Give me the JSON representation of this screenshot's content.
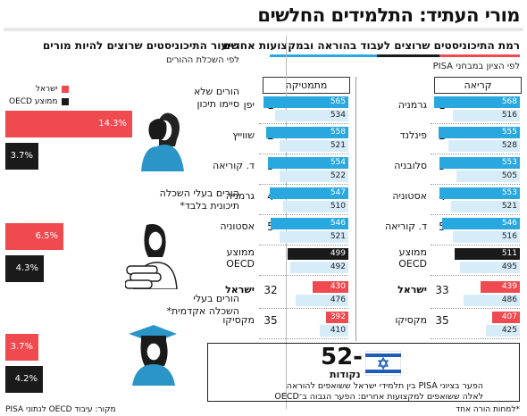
{
  "title": "מורי העתיד: התלמידים החלשים",
  "left_panel": {
    "heading": "רמת התיכוניסטים שרוצים לעבוד בהוראה ובמקצועות אחרים",
    "subheading": "לפי הציון במבחני PISA",
    "col_reading": "קריאה",
    "col_math": "מתמטיקה"
  },
  "right_panel": {
    "heading": "שיעור התיכוניסטים שרוצים להיות מורים",
    "subheading": "לפי השכלת ההורים",
    "legend": [
      {
        "label": "ישראל",
        "color": "#ef4a4f"
      },
      {
        "label": "ממוצע OECD",
        "color": "#1a1a1a"
      }
    ],
    "groups": [
      {
        "label_line1": "הורים שלא",
        "label_line2": "סיימו תיכון",
        "israel": 14.3,
        "oecd": 3.7,
        "israel_label": "14.3%",
        "oecd_label": "3.7%"
      },
      {
        "label_line1": "הורים בעלי השכלה",
        "label_line2": "תיכונית בלבד*",
        "israel": 6.5,
        "oecd": 4.3,
        "israel_label": "6.5%",
        "oecd_label": "4.3%"
      },
      {
        "label_line1": "הורים בעלי",
        "label_line2": "השכלה אקדמית*",
        "israel": 3.7,
        "oecd": 4.2,
        "israel_label": "3.7%",
        "oecd_label": "4.2%"
      }
    ]
  },
  "chart_data": [
    {
      "type": "bar",
      "title": "קריאה",
      "rows": [
        {
          "rank": "1",
          "country": "גרמניה",
          "top": 568,
          "other": 516
        },
        {
          "rank": "2",
          "country": "פינלנד",
          "top": 555,
          "other": 528
        },
        {
          "rank": "3",
          "country": "סלובניה",
          "top": 553,
          "other": 505
        },
        {
          "rank": "4",
          "country": "אסטוניה",
          "top": 553,
          "other": 521
        },
        {
          "rank": "5",
          "country": "ד. קוריאה",
          "top": 546,
          "other": 516
        },
        {
          "rank": "",
          "country": "ממוצע OECD",
          "top": 511,
          "other": 495
        },
        {
          "rank": "33",
          "country": "ישראל",
          "top": 439,
          "other": 486
        },
        {
          "rank": "35",
          "country": "מקסיקו",
          "top": 407,
          "other": 425
        }
      ]
    },
    {
      "type": "bar",
      "title": "מתמטיקה",
      "rows": [
        {
          "rank": "1",
          "country": "יפן",
          "top": 565,
          "other": 534
        },
        {
          "rank": "2",
          "country": "שווייץ",
          "top": 558,
          "other": 521
        },
        {
          "rank": "3",
          "country": "ד. קוריאה",
          "top": 554,
          "other": 522
        },
        {
          "rank": "4",
          "country": "גרמניה",
          "top": 547,
          "other": 510
        },
        {
          "rank": "5",
          "country": "אסטוניה",
          "top": 546,
          "other": 521
        },
        {
          "rank": "",
          "country": "ממוצע OECD",
          "top": 499,
          "other": 492
        },
        {
          "rank": "32",
          "country": "ישראל",
          "top": 430,
          "other": 476
        },
        {
          "rank": "35",
          "country": "מקסיקו",
          "top": 392,
          "other": 410
        }
      ]
    },
    {
      "type": "bar",
      "title": "שיעור התיכוניסטים שרוצים להיות מורים",
      "categories": [
        "הורים שלא סיימו תיכון",
        "הורים בעלי השכלה תיכונית בלבד*",
        "הורים בעלי השכלה אקדמית*"
      ],
      "series": [
        {
          "name": "ישראל",
          "values": [
            14.3,
            6.5,
            3.7
          ]
        },
        {
          "name": "ממוצע OECD",
          "values": [
            3.7,
            4.3,
            4.2
          ]
        }
      ]
    }
  ],
  "gap_box": {
    "value": "52-",
    "unit": "נקודות",
    "line1": "הפער בציוני PISA בין תלמידי ישראל ששואפים להוראה",
    "line2": "לאלה ששואפים למקצועות אחרים: הפער הגבוה ב־OECD"
  },
  "footnote": "*למחות הורה אחד",
  "source": "מקור: עיבוד OECD לנתוני PISA"
}
